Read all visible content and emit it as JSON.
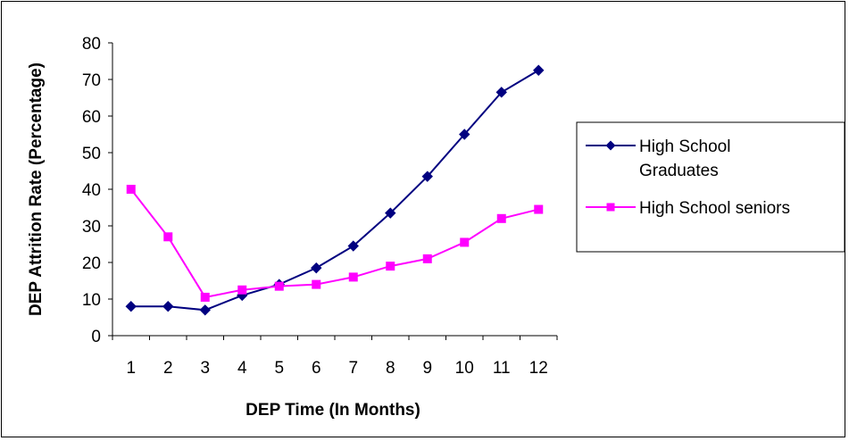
{
  "chart_data": {
    "type": "line",
    "title": "",
    "xlabel": "DEP Time (In Months)",
    "ylabel": "DEP Attrition Rate (Percentage)",
    "categories": [
      "1",
      "2",
      "3",
      "4",
      "5",
      "6",
      "7",
      "8",
      "9",
      "10",
      "11",
      "12"
    ],
    "ylim": [
      0,
      80
    ],
    "yticks": [
      0,
      10,
      20,
      30,
      40,
      50,
      60,
      70,
      80
    ],
    "grid": false,
    "legend_position": "right",
    "series": [
      {
        "name": "High School Graduates",
        "legend_lines": [
          "High School",
          "Graduates"
        ],
        "color": "#000080",
        "marker": "diamond",
        "values": [
          8,
          8,
          7,
          11,
          14,
          18.5,
          24.5,
          33.5,
          43.5,
          55,
          66.5,
          72.5
        ]
      },
      {
        "name": "High School seniors",
        "legend_lines": [
          "High School seniors"
        ],
        "color": "#ff00ff",
        "marker": "square",
        "values": [
          40,
          27,
          10.5,
          12.5,
          13.5,
          14,
          16,
          19,
          21,
          25.5,
          32,
          34.5
        ]
      }
    ]
  }
}
